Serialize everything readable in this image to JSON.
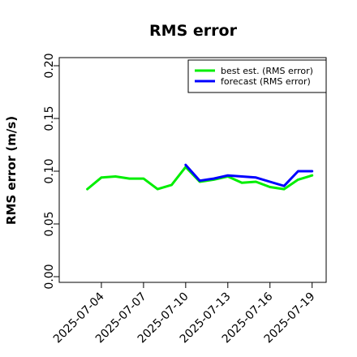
{
  "chart_data": {
    "type": "line",
    "title": "RMS error",
    "xlabel": "",
    "ylabel": "RMS error (m/s)",
    "ylim": [
      0.0,
      0.21
    ],
    "yticks": [
      0.0,
      0.05,
      0.1,
      0.15,
      0.2
    ],
    "ytick_labels": [
      "0.00",
      "0.05",
      "0.10",
      "0.15",
      "0.20"
    ],
    "xlim": [
      "2025-07-01",
      "2025-07-20"
    ],
    "xticks": [
      "2025-07-04",
      "2025-07-07",
      "2025-07-10",
      "2025-07-13",
      "2025-07-16",
      "2025-07-19"
    ],
    "highlighted_tick": "2025-07-10",
    "highlight_color": "#2e8b2e",
    "grid": false,
    "legend_position": "top-right",
    "series": [
      {
        "name": "best est. (RMS error)",
        "color": "#00ee00",
        "x": [
          "2025-07-03",
          "2025-07-04",
          "2025-07-05",
          "2025-07-06",
          "2025-07-07",
          "2025-07-08",
          "2025-07-09",
          "2025-07-10",
          "2025-07-11",
          "2025-07-12",
          "2025-07-13",
          "2025-07-14",
          "2025-07-15",
          "2025-07-16",
          "2025-07-17",
          "2025-07-18",
          "2025-07-19"
        ],
        "values": [
          0.083,
          0.094,
          0.095,
          0.093,
          0.093,
          0.083,
          0.087,
          0.104,
          0.09,
          0.092,
          0.095,
          0.089,
          0.09,
          0.085,
          0.083,
          0.092,
          0.096
        ]
      },
      {
        "name": "forecast (RMS error)",
        "color": "#0000ff",
        "x": [
          "2025-07-10",
          "2025-07-11",
          "2025-07-12",
          "2025-07-13",
          "2025-07-14",
          "2025-07-15",
          "2025-07-16",
          "2025-07-17",
          "2025-07-18",
          "2025-07-19"
        ],
        "values": [
          0.106,
          0.091,
          0.093,
          0.096,
          0.095,
          0.094,
          0.09,
          0.086,
          0.1,
          0.1
        ]
      }
    ]
  }
}
